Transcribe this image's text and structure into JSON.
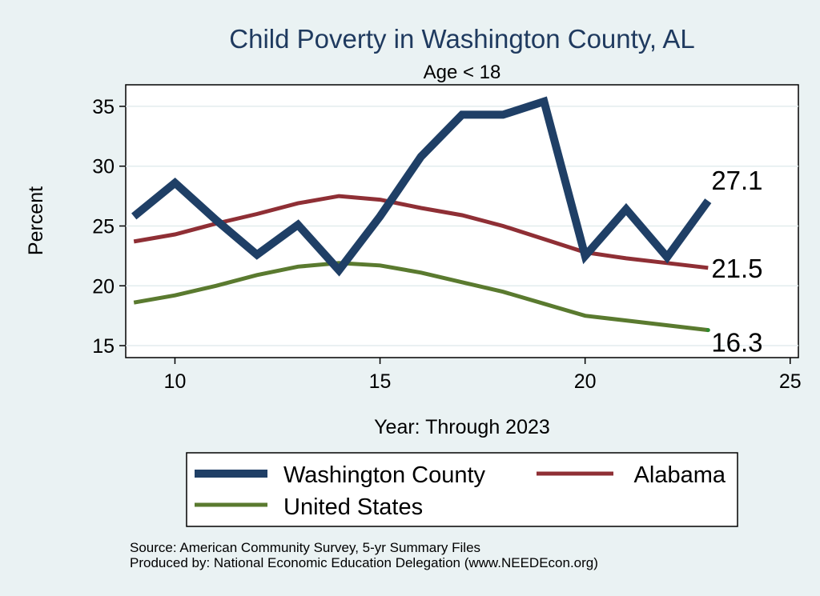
{
  "chart_data": {
    "type": "line",
    "title": "Child Poverty in Washington County, AL",
    "subtitle": "Age < 18",
    "xlabel": "Year: Through 2023",
    "ylabel": "Percent",
    "xlim": [
      8.8,
      25.2
    ],
    "ylim": [
      14.0,
      36.8
    ],
    "xticks": [
      10,
      15,
      20,
      25
    ],
    "yticks": [
      15,
      20,
      25,
      30,
      35
    ],
    "grid": true,
    "x": [
      9,
      10,
      11,
      12,
      13,
      14,
      15,
      16,
      17,
      18,
      19,
      20,
      21,
      22,
      23
    ],
    "series": [
      {
        "name": "Washington County",
        "color": "#1f3f66",
        "values": [
          25.8,
          28.6,
          25.5,
          22.6,
          25.1,
          21.3,
          25.8,
          30.8,
          34.3,
          34.3,
          35.4,
          22.5,
          26.4,
          22.4,
          27.1
        ],
        "end_label": "27.1"
      },
      {
        "name": "Alabama",
        "color": "#8f2f35",
        "values": [
          23.7,
          24.3,
          25.2,
          26.0,
          26.9,
          27.5,
          27.2,
          26.5,
          25.9,
          25.0,
          23.9,
          22.8,
          22.3,
          21.9,
          21.5
        ],
        "end_label": "21.5"
      },
      {
        "name": "United States",
        "color": "#5a7a2f",
        "values": [
          18.6,
          19.2,
          20.0,
          20.9,
          21.6,
          21.9,
          21.7,
          21.1,
          20.3,
          19.5,
          18.5,
          17.5,
          17.1,
          16.7,
          16.3
        ],
        "end_label": "16.3"
      }
    ],
    "legend": {
      "position": "bottom",
      "entries": [
        "Washington County",
        "Alabama",
        "United States"
      ]
    },
    "note_lines": [
      "Source: American Community Survey, 5-yr Summary Files",
      "Produced by: National Economic Education Delegation (www.NEEDEcon.org)"
    ]
  },
  "colors": {
    "page_background": "#eaf2f3",
    "plot_background": "#ffffff",
    "title_color": "#1f3a5f",
    "grid_color": "#e3ecee"
  }
}
